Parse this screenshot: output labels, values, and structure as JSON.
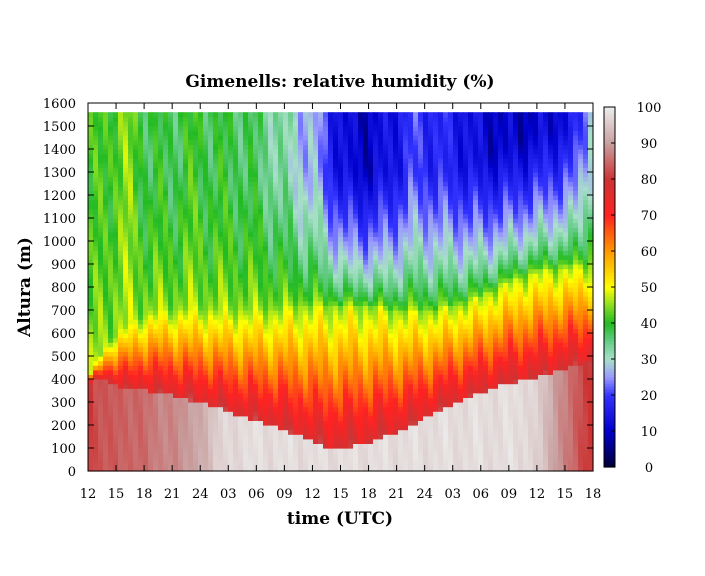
{
  "chart_data": {
    "type": "heatmap",
    "title": "Gimenells: relative humidity (%)",
    "xlabel": "time (UTC)",
    "ylabel": "Altura (m)",
    "x_ticks": [
      "12",
      "15",
      "18",
      "21",
      "24",
      "03",
      "06",
      "09",
      "12",
      "15",
      "18",
      "21",
      "24",
      "03",
      "06",
      "09",
      "12",
      "15",
      "18"
    ],
    "y_ticks": [
      0,
      100,
      200,
      300,
      400,
      500,
      600,
      700,
      800,
      900,
      1000,
      1100,
      1200,
      1300,
      1400,
      1500,
      1600
    ],
    "ylim": [
      0,
      1600
    ],
    "colorbar": {
      "range": [
        0,
        100
      ],
      "ticks": [
        0,
        10,
        20,
        30,
        40,
        50,
        60,
        70,
        80,
        90,
        100
      ],
      "stops": [
        {
          "value": 0,
          "color": "#000033"
        },
        {
          "value": 10,
          "color": "#0000cc"
        },
        {
          "value": 20,
          "color": "#3333ff"
        },
        {
          "value": 25,
          "color": "#9999ff"
        },
        {
          "value": 30,
          "color": "#a8e0c8"
        },
        {
          "value": 35,
          "color": "#66cc88"
        },
        {
          "value": 40,
          "color": "#22bb22"
        },
        {
          "value": 45,
          "color": "#88dd22"
        },
        {
          "value": 50,
          "color": "#ffff00"
        },
        {
          "value": 60,
          "color": "#ff9900"
        },
        {
          "value": 70,
          "color": "#ff2222"
        },
        {
          "value": 80,
          "color": "#cc3333"
        },
        {
          "value": 90,
          "color": "#c8a0a0"
        },
        {
          "value": 100,
          "color": "#ececec"
        }
      ]
    },
    "data_top_m": 1560,
    "time_index_range": [
      0,
      18
    ],
    "time_profile": [
      0,
      0.3,
      0.7,
      1.4,
      2.2,
      3.0,
      3.8,
      4.6,
      5.4,
      6.0,
      6.6,
      7.6,
      8.1,
      8.6,
      9.1,
      9.9,
      10.8,
      11.6,
      12.3,
      13.1,
      14.0,
      14.9,
      15.7,
      16.5,
      17.3,
      18
    ],
    "moist_layer_top_m": [
      380,
      400,
      390,
      350,
      350,
      330,
      300,
      280,
      240,
      220,
      200,
      150,
      120,
      100,
      100,
      120,
      160,
      200,
      250,
      300,
      340,
      380,
      400,
      430,
      460,
      480
    ],
    "inversion_height_m": [
      410,
      480,
      560,
      640,
      690,
      700,
      710,
      700,
      700,
      700,
      700,
      720,
      720,
      720,
      720,
      720,
      700,
      700,
      700,
      720,
      760,
      820,
      860,
      880,
      890,
      900
    ],
    "upper_rh_percent": [
      40,
      40,
      42,
      44,
      38,
      38,
      40,
      38,
      38,
      36,
      34,
      28,
      26,
      18,
      12,
      10,
      14,
      20,
      18,
      16,
      12,
      10,
      10,
      12,
      14,
      30
    ],
    "surface_rh_percent": [
      80,
      82,
      84,
      84,
      86,
      88,
      90,
      96,
      98,
      98,
      98,
      98,
      98,
      98,
      98,
      98,
      98,
      98,
      98,
      98,
      98,
      98,
      98,
      92,
      84,
      80
    ]
  }
}
